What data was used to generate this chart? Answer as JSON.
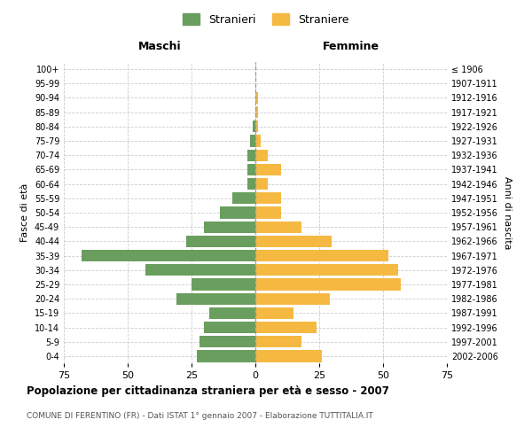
{
  "age_groups": [
    "0-4",
    "5-9",
    "10-14",
    "15-19",
    "20-24",
    "25-29",
    "30-34",
    "35-39",
    "40-44",
    "45-49",
    "50-54",
    "55-59",
    "60-64",
    "65-69",
    "70-74",
    "75-79",
    "80-84",
    "85-89",
    "90-94",
    "95-99",
    "100+"
  ],
  "birth_years": [
    "2002-2006",
    "1997-2001",
    "1992-1996",
    "1987-1991",
    "1982-1986",
    "1977-1981",
    "1972-1976",
    "1967-1971",
    "1962-1966",
    "1957-1961",
    "1952-1956",
    "1947-1951",
    "1942-1946",
    "1937-1941",
    "1932-1936",
    "1927-1931",
    "1922-1926",
    "1917-1921",
    "1912-1916",
    "1907-1911",
    "≤ 1906"
  ],
  "maschi": [
    23,
    22,
    20,
    18,
    31,
    25,
    43,
    68,
    27,
    20,
    14,
    9,
    3,
    3,
    3,
    2,
    1,
    0,
    0,
    0,
    0
  ],
  "femmine": [
    26,
    18,
    24,
    15,
    29,
    57,
    56,
    52,
    30,
    18,
    10,
    10,
    5,
    10,
    5,
    2,
    1,
    1,
    1,
    0,
    0
  ],
  "color_maschi": "#6a9e5e",
  "color_femmine": "#f5b942",
  "title": "Popolazione per cittadinanza straniera per età e sesso - 2007",
  "subtitle": "COMUNE DI FERENTINO (FR) - Dati ISTAT 1° gennaio 2007 - Elaborazione TUTTITALIA.IT",
  "ylabel_left": "Fasce di età",
  "ylabel_right": "Anni di nascita",
  "xlabel_left": "Maschi",
  "xlabel_right": "Femmine",
  "legend_stranieri": "Stranieri",
  "legend_straniere": "Straniere",
  "xlim": 75,
  "background_color": "#ffffff",
  "grid_color": "#cccccc"
}
